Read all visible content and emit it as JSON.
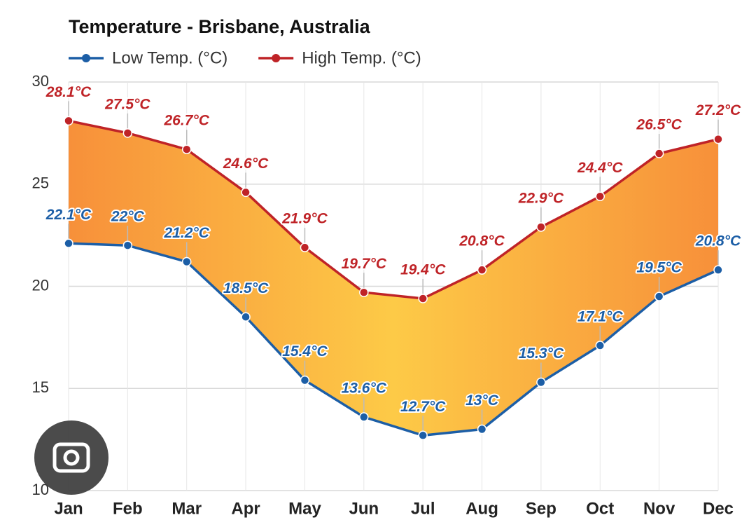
{
  "chart_data": {
    "type": "line",
    "title": "Temperature - Brisbane, Australia",
    "categories": [
      "Jan",
      "Feb",
      "Mar",
      "Apr",
      "May",
      "Jun",
      "Jul",
      "Aug",
      "Sep",
      "Oct",
      "Nov",
      "Dec"
    ],
    "series": [
      {
        "name": "Low Temp. (°C)",
        "color": "#1c5ea6",
        "values": [
          22.1,
          22,
          21.2,
          18.5,
          15.4,
          13.6,
          12.7,
          13,
          15.3,
          17.1,
          19.5,
          20.8
        ],
        "value_labels": [
          "22.1°C",
          "22°C",
          "21.2°C",
          "18.5°C",
          "15.4°C",
          "13.6°C",
          "12.7°C",
          "13°C",
          "15.3°C",
          "17.1°C",
          "19.5°C",
          "20.8°C"
        ]
      },
      {
        "name": "High Temp. (°C)",
        "color": "#bf2327",
        "values": [
          28.1,
          27.5,
          26.7,
          24.6,
          21.9,
          19.7,
          19.4,
          20.8,
          22.9,
          24.4,
          26.5,
          27.2
        ],
        "value_labels": [
          "28.1°C",
          "27.5°C",
          "26.7°C",
          "24.6°C",
          "21.9°C",
          "19.7°C",
          "19.4°C",
          "20.8°C",
          "22.9°C",
          "24.4°C",
          "26.5°C",
          "27.2°C"
        ]
      }
    ],
    "ylim": [
      10,
      30
    ],
    "yticks": [
      10,
      15,
      20,
      25,
      30
    ],
    "grid": true
  }
}
